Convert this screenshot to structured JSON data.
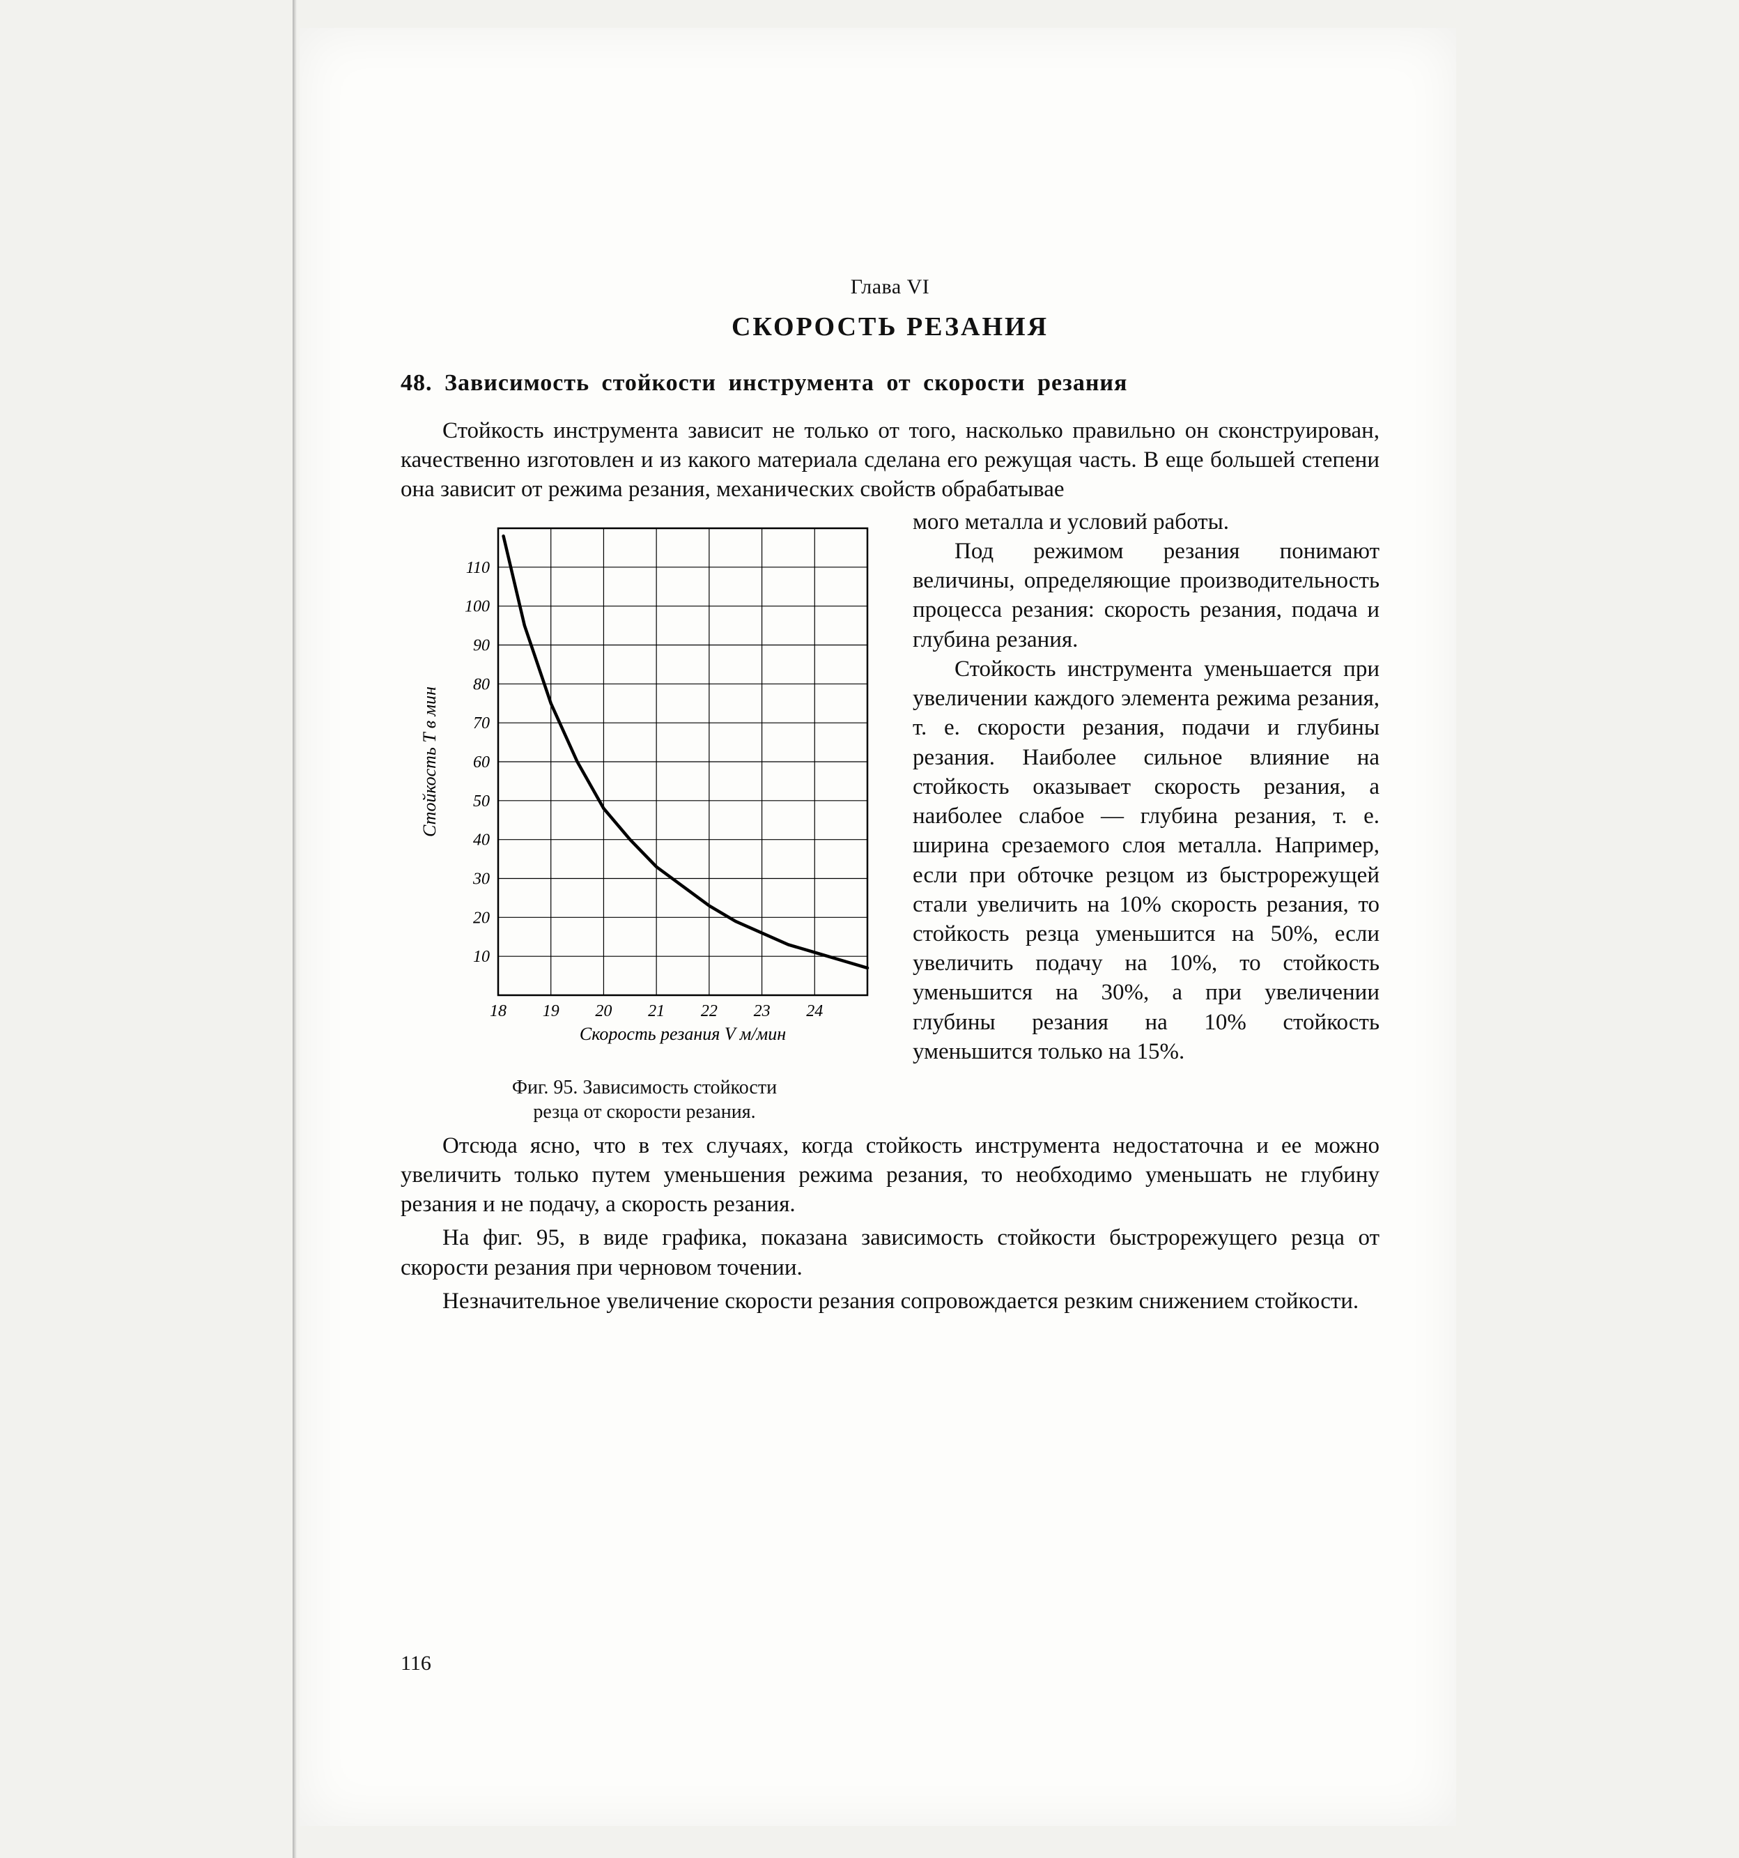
{
  "chapter": "Глава VI",
  "title": "СКОРОСТЬ РЕЗАНИЯ",
  "section_heading": "48. Зависимость стойкости инструмента от скорости резания",
  "para_lead": "Стойкость инструмента зависит не только от того, насколько правильно он сконструирован, качественно изготовлен и из какого материала сделана его режущая часть. В еще большей степени она зависит от режима резания, механических свойств обрабатывае",
  "wrap": {
    "p0_tail": "мого металла и условий работы.",
    "p1": "Под режимом резания понимают величины, определяющие производительность процесса резания: скорость резания, подача и глубина резания.",
    "p2": "Стойкость инструмента уменьшается при увеличении каждого элемента режима резания, т. е. скорости резания, подачи и глубины резания. Наиболее сильное влияние на стойкость оказывает скорость резания, а наиболее слабое — глубина резания, т. е. ширина срезаемого слоя металла. Например, если при обточке резцом из быстрорежущей стали увеличить на 10% скорость резания, то стойкость резца уменьшится на 50%, если увеличить подачу на 10%, то стойкость уменьшится на 30%, а при увеличении глубины резания на 10% стойкость уменьшится только на 15%."
  },
  "after": {
    "p1": "Отсюда ясно, что в тех случаях, когда стойкость инструмента недостаточна и ее можно увеличить только путем уменьшения режима резания, то необходимо уменьшать не глубину резания и не подачу, а скорость резания.",
    "p2": "На фиг. 95, в виде графика, показана зависимость стойкости быстрорежущего резца от скорости резания при черновом точении.",
    "p3": "Незначительное увеличение скорости резания сопровождается резким снижением стойкости."
  },
  "figure": {
    "caption_line1": "Фиг. 95. Зависимость стойкости",
    "caption_line2": "резца от скорости резания.",
    "chart": {
      "type": "line",
      "xlabel": "Скорость резания V м/мин",
      "ylabel": "Стойкость T в мин",
      "x_ticks": [
        18,
        19,
        20,
        21,
        22,
        23,
        24
      ],
      "y_ticks": [
        10,
        20,
        30,
        40,
        50,
        60,
        70,
        80,
        90,
        100,
        110
      ],
      "xlim": [
        18,
        25
      ],
      "ylim": [
        0,
        120
      ],
      "curve": [
        {
          "x": 18.1,
          "y": 118
        },
        {
          "x": 18.5,
          "y": 95
        },
        {
          "x": 19.0,
          "y": 75
        },
        {
          "x": 19.5,
          "y": 60
        },
        {
          "x": 20.0,
          "y": 48
        },
        {
          "x": 20.5,
          "y": 40
        },
        {
          "x": 21.0,
          "y": 33
        },
        {
          "x": 21.5,
          "y": 28
        },
        {
          "x": 22.0,
          "y": 23
        },
        {
          "x": 22.5,
          "y": 19
        },
        {
          "x": 23.0,
          "y": 16
        },
        {
          "x": 23.5,
          "y": 13
        },
        {
          "x": 24.0,
          "y": 11
        },
        {
          "x": 24.5,
          "y": 9
        },
        {
          "x": 25.0,
          "y": 7
        }
      ],
      "colors": {
        "axis": "#000000",
        "grid": "#000000",
        "curve": "#000000",
        "text": "#000000",
        "background": "#fdfdfb"
      },
      "line_width_frame": 2.5,
      "line_width_grid": 1.2,
      "line_width_curve": 4.5,
      "tick_fontsize": 24,
      "label_fontsize": 26,
      "ylabel_fontstyle": "italic"
    }
  },
  "page_number": "116"
}
